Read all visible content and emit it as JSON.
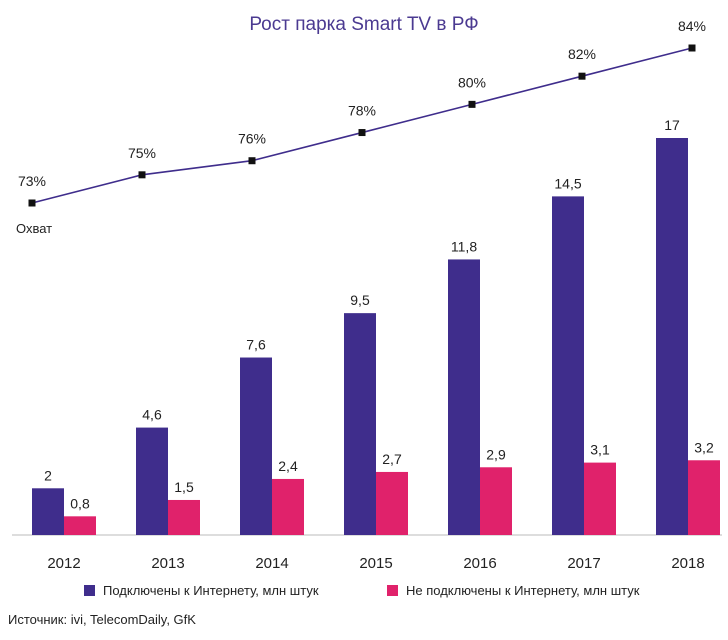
{
  "chart_data": {
    "type": "bar",
    "title": "Рост парка Smart TV в РФ",
    "categories": [
      "2012",
      "2013",
      "2014",
      "2015",
      "2016",
      "2017",
      "2018"
    ],
    "series": [
      {
        "name": "Подключены к Интернету, млн штук",
        "values": [
          2,
          4.6,
          7.6,
          9.5,
          11.8,
          14.5,
          17
        ],
        "labels": [
          "2",
          "4,6",
          "7,6",
          "9,5",
          "11,8",
          "14,5",
          "17"
        ],
        "color": "#3f2d8c"
      },
      {
        "name": "Не подключены к Интернету, млн штук",
        "values": [
          0.8,
          1.5,
          2.4,
          2.7,
          2.9,
          3.1,
          3.2
        ],
        "labels": [
          "0,8",
          "1,5",
          "2,4",
          "2,7",
          "2,9",
          "3,1",
          "3,2"
        ],
        "color": "#e0226b"
      }
    ],
    "line": {
      "name": "Охват",
      "values": [
        73,
        75,
        76,
        78,
        80,
        82,
        84
      ],
      "labels": [
        "73%",
        "75%",
        "76%",
        "78%",
        "80%",
        "82%",
        "84%"
      ],
      "color": "#3f2d8c"
    },
    "ylim": [
      0,
      17
    ]
  },
  "source_text": "Источник: ivi, TelecomDaily, GfK"
}
